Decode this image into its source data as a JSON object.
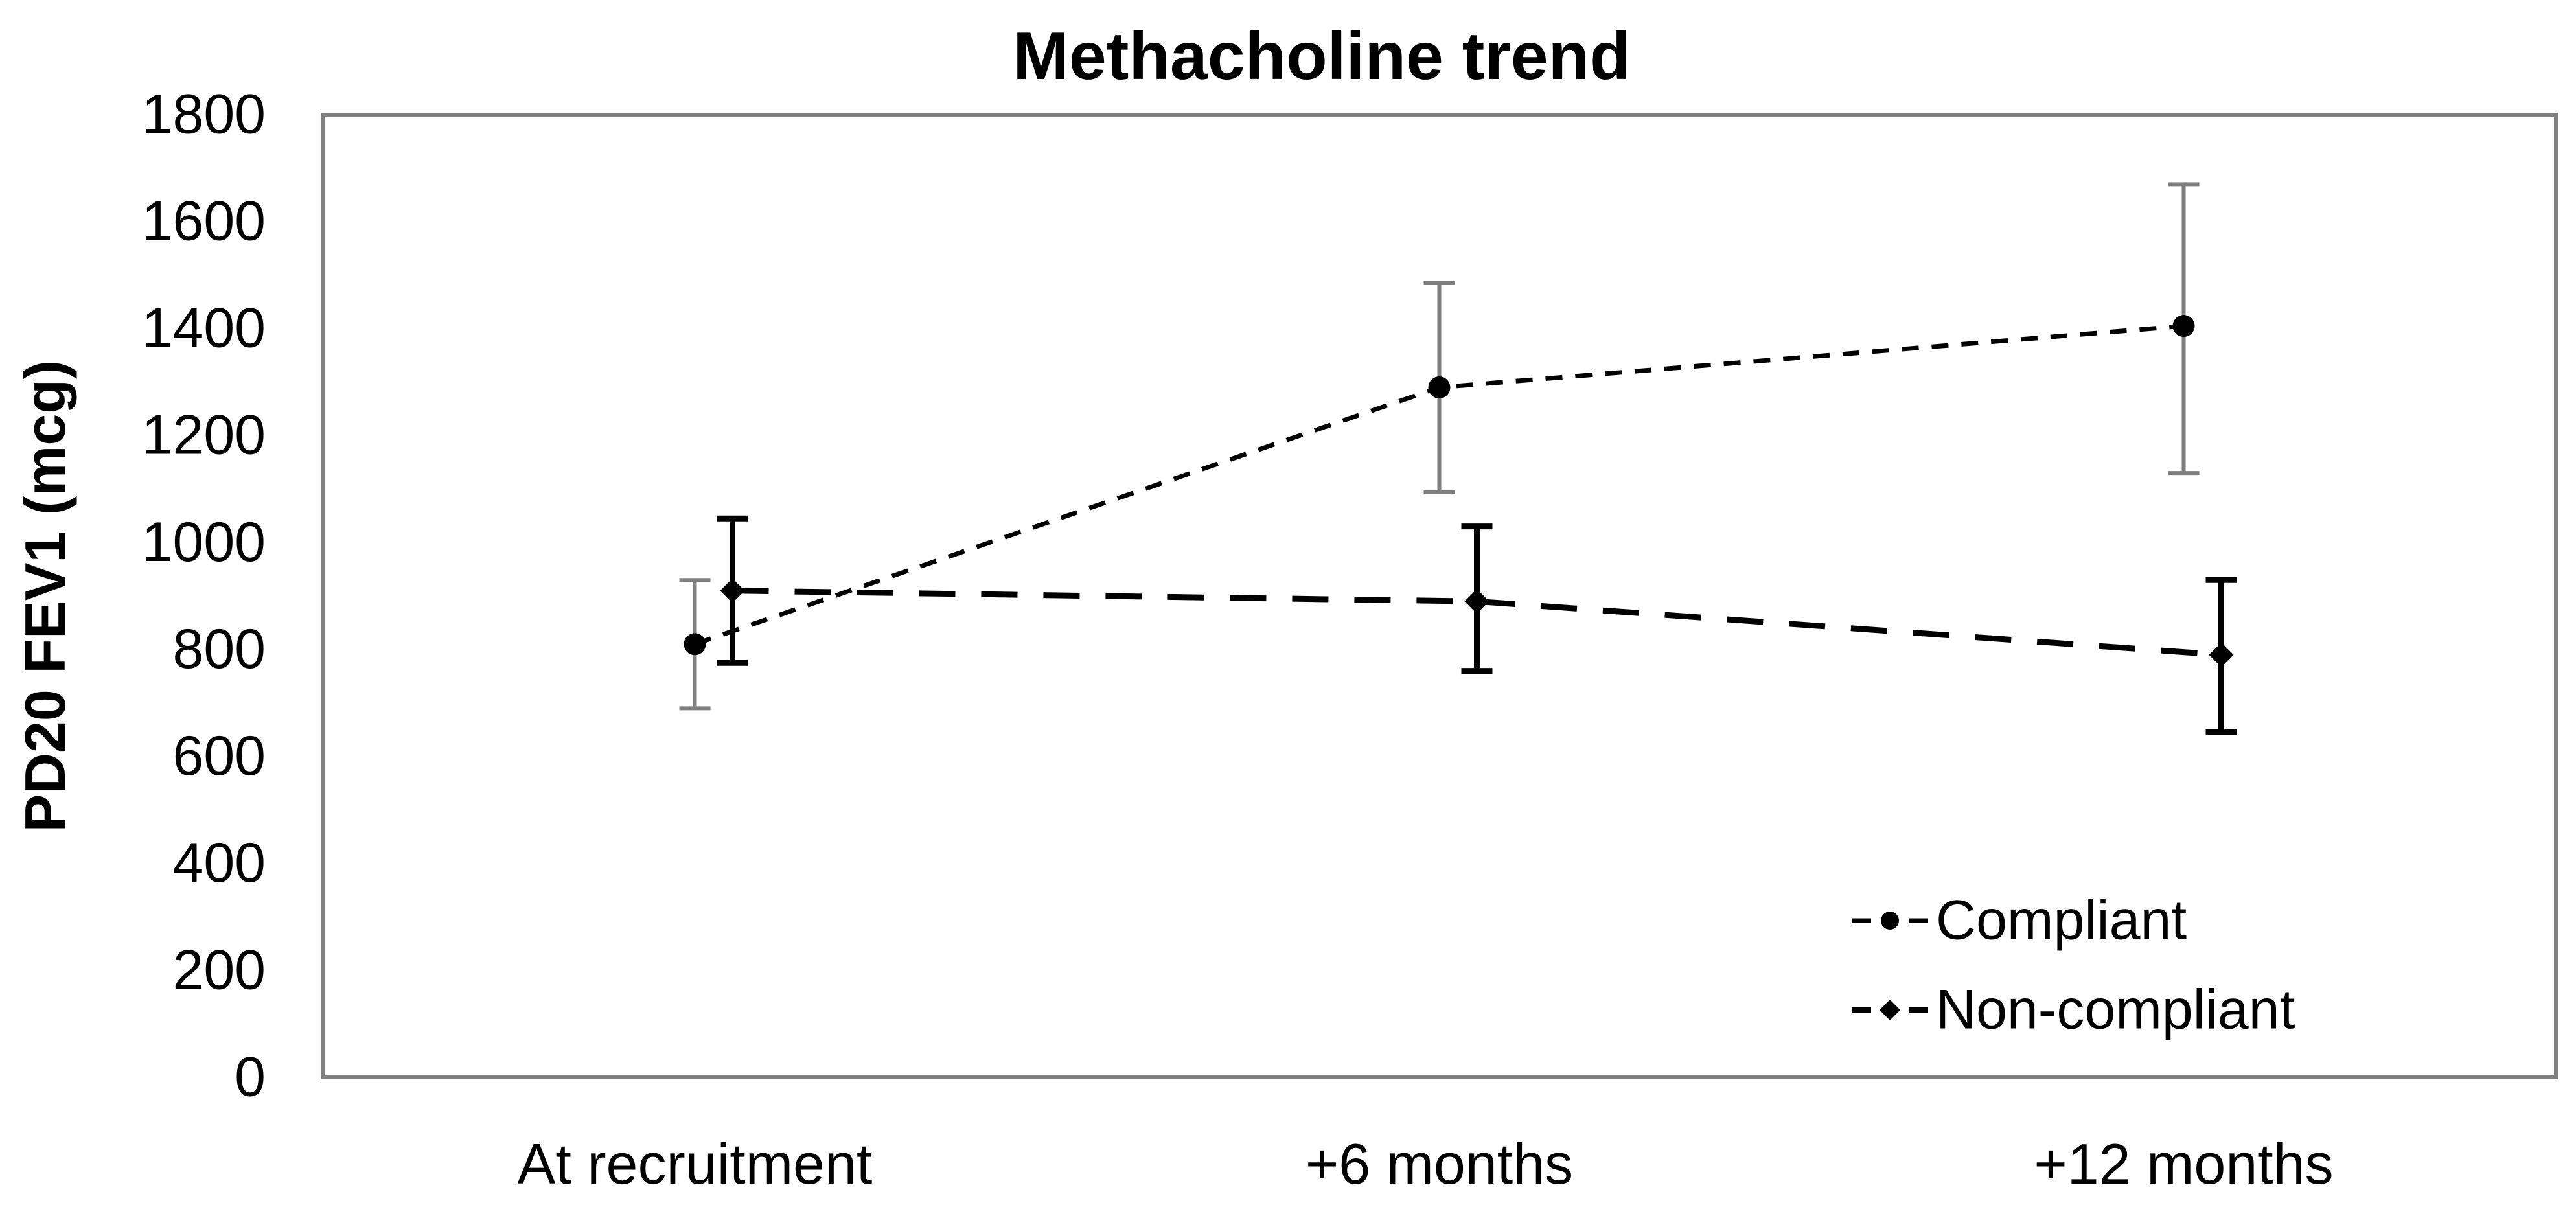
{
  "page": {
    "background": "#ffffff"
  },
  "chart_data": {
    "type": "line",
    "title": "Methacholine trend",
    "ylabel": "PD20 FEV1 (mcg)",
    "xlabel": "",
    "categories": [
      "At recruitment",
      "+6 months",
      "+12 months"
    ],
    "ylim": [
      0,
      1800
    ],
    "yticks": [
      0,
      200,
      400,
      600,
      800,
      1000,
      1200,
      1400,
      1600,
      1800
    ],
    "grid": false,
    "frame_color": "#808080",
    "text_color": "#000000",
    "legend": {
      "position": "inside-bottom-right",
      "items": [
        "Compliant",
        "Non-compliant"
      ]
    },
    "series": [
      {
        "name": "Compliant",
        "marker": "circle",
        "line_style": "dashed-fine",
        "color": "#000000",
        "error_bar_color": "#7f7f7f",
        "values": [
          810,
          1290,
          1405
        ],
        "error_low": [
          690,
          1095,
          1130
        ],
        "error_high": [
          930,
          1485,
          1670
        ]
      },
      {
        "name": "Non-compliant",
        "marker": "diamond",
        "line_style": "dashed-long",
        "color": "#000000",
        "error_bar_color": "#000000",
        "values": [
          910,
          890,
          790
        ],
        "error_low": [
          775,
          760,
          645
        ],
        "error_high": [
          1045,
          1030,
          930
        ]
      }
    ]
  }
}
